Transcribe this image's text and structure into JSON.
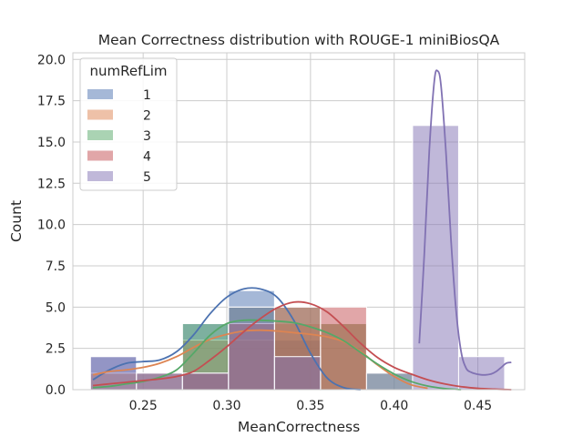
{
  "chart_data": {
    "type": "histogram",
    "title": "Mean Correctness distribution with ROUGE-1 miniBiosQA",
    "xlabel": "MeanCorrectness",
    "ylabel": "Count",
    "xlim": [
      0.208,
      0.478
    ],
    "ylim": [
      0,
      20.4
    ],
    "xticks": [
      0.25,
      0.3,
      0.35,
      0.4,
      0.45
    ],
    "xtick_labels": [
      "0.25",
      "0.30",
      "0.35",
      "0.40",
      "0.45"
    ],
    "yticks": [
      0.0,
      2.5,
      5.0,
      7.5,
      10.0,
      12.5,
      15.0,
      17.5,
      20.0
    ],
    "ytick_labels": [
      "0.0",
      "2.5",
      "5.0",
      "7.5",
      "10.0",
      "12.5",
      "15.0",
      "17.5",
      "20.0"
    ],
    "bin_edges": [
      0.2185,
      0.246,
      0.2735,
      0.301,
      0.3285,
      0.356,
      0.3835,
      0.411,
      0.4385,
      0.466
    ],
    "grid": true,
    "legend": {
      "title": "numRefLim",
      "position": "top-left"
    },
    "series": [
      {
        "name": "1",
        "color": "#4c72b0",
        "counts": [
          2,
          1,
          4,
          6,
          3,
          0,
          0,
          0,
          0
        ],
        "kde_x": [
          0.22,
          0.23,
          0.24,
          0.25,
          0.26,
          0.27,
          0.28,
          0.29,
          0.3,
          0.31,
          0.32,
          0.33,
          0.34,
          0.35,
          0.36,
          0.37,
          0.38
        ],
        "kde_y": [
          0.6,
          1.2,
          1.6,
          1.7,
          1.8,
          2.3,
          3.3,
          4.6,
          5.6,
          6.1,
          6.1,
          5.6,
          4.2,
          2.2,
          0.7,
          0.12,
          0.0
        ]
      },
      {
        "name": "2",
        "color": "#dd8452",
        "counts": [
          1,
          1,
          3,
          3,
          4,
          4,
          0,
          0,
          0
        ],
        "kde_x": [
          0.22,
          0.23,
          0.24,
          0.25,
          0.26,
          0.27,
          0.28,
          0.29,
          0.3,
          0.31,
          0.32,
          0.33,
          0.34,
          0.35,
          0.36,
          0.37,
          0.38,
          0.39,
          0.4,
          0.41,
          0.42
        ],
        "kde_y": [
          0.9,
          1.1,
          1.2,
          1.35,
          1.6,
          2.0,
          2.55,
          3.05,
          3.35,
          3.55,
          3.6,
          3.55,
          3.45,
          3.35,
          3.2,
          2.9,
          2.3,
          1.5,
          0.8,
          0.3,
          0.08
        ]
      },
      {
        "name": "3",
        "color": "#55a868",
        "counts": [
          0,
          0,
          4,
          5,
          5,
          4,
          1,
          0,
          0
        ],
        "kde_x": [
          0.22,
          0.23,
          0.24,
          0.25,
          0.26,
          0.27,
          0.28,
          0.29,
          0.3,
          0.31,
          0.32,
          0.33,
          0.34,
          0.35,
          0.36,
          0.37,
          0.38,
          0.39,
          0.4,
          0.41,
          0.42,
          0.43,
          0.44
        ],
        "kde_y": [
          0.12,
          0.2,
          0.35,
          0.5,
          0.75,
          1.2,
          2.2,
          3.3,
          4.0,
          4.2,
          4.2,
          4.15,
          4.05,
          3.8,
          3.45,
          2.95,
          2.25,
          1.55,
          0.95,
          0.5,
          0.22,
          0.07,
          0.0
        ]
      },
      {
        "name": "4",
        "color": "#c44e52",
        "counts": [
          0,
          0,
          1,
          4,
          5,
          5,
          0,
          0,
          0
        ],
        "kde_x": [
          0.22,
          0.23,
          0.24,
          0.25,
          0.26,
          0.27,
          0.28,
          0.29,
          0.3,
          0.31,
          0.32,
          0.33,
          0.34,
          0.35,
          0.36,
          0.37,
          0.38,
          0.39,
          0.4,
          0.41,
          0.42,
          0.43,
          0.44,
          0.45,
          0.46,
          0.47
        ],
        "kde_y": [
          0.25,
          0.35,
          0.45,
          0.55,
          0.65,
          0.8,
          1.1,
          1.8,
          2.6,
          3.5,
          4.3,
          4.95,
          5.3,
          5.2,
          4.7,
          3.8,
          2.8,
          1.95,
          1.35,
          0.95,
          0.6,
          0.35,
          0.18,
          0.08,
          0.03,
          0.0
        ]
      },
      {
        "name": "5",
        "color": "#8172b3",
        "counts": [
          2,
          1,
          1,
          5,
          2,
          0,
          1,
          16,
          2
        ],
        "kde_x": [
          0.415,
          0.418,
          0.421,
          0.424,
          0.426,
          0.428,
          0.431,
          0.434,
          0.437,
          0.44,
          0.443,
          0.446,
          0.449,
          0.452,
          0.455,
          0.458,
          0.461,
          0.464,
          0.467,
          0.47
        ],
        "kde_y": [
          2.8,
          8.2,
          14.5,
          18.7,
          19.3,
          18.4,
          14.3,
          9.0,
          4.8,
          2.3,
          1.3,
          1.05,
          0.95,
          0.9,
          0.9,
          0.95,
          1.1,
          1.35,
          1.6,
          1.65
        ]
      }
    ]
  }
}
